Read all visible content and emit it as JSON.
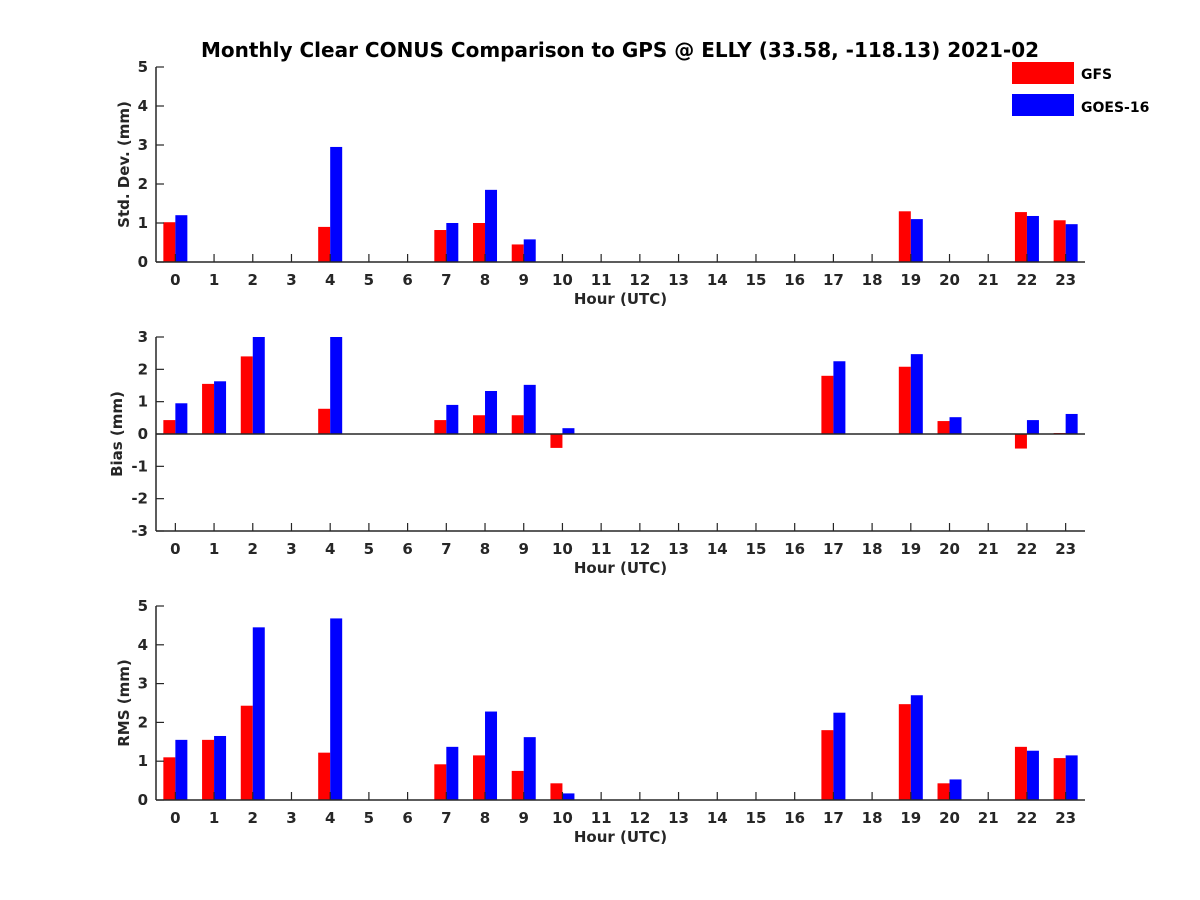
{
  "chart_data": {
    "title": "Monthly Clear CONUS Comparison to GPS @ ELLY (33.58, -118.13) 2021-02",
    "legend": [
      {
        "name": "GFS",
        "color": "#ff0000"
      },
      {
        "name": "GOES-16",
        "color": "#0000ff"
      }
    ],
    "legend_position": "top-right",
    "categories": [
      "0",
      "1",
      "2",
      "3",
      "4",
      "5",
      "6",
      "7",
      "8",
      "9",
      "10",
      "11",
      "12",
      "13",
      "14",
      "15",
      "16",
      "17",
      "18",
      "19",
      "20",
      "21",
      "22",
      "23"
    ],
    "panels": [
      {
        "type": "bar",
        "xlabel": "Hour (UTC)",
        "ylabel": "Std. Dev. (mm)",
        "ylim": [
          0,
          5
        ],
        "yticks": [
          "0",
          "1",
          "2",
          "3",
          "4",
          "5"
        ],
        "series": [
          {
            "name": "GFS",
            "values": [
              1.02,
              null,
              null,
              null,
              0.9,
              null,
              null,
              0.82,
              1.0,
              0.45,
              null,
              null,
              null,
              null,
              null,
              null,
              null,
              null,
              null,
              1.3,
              null,
              null,
              1.28,
              1.07
            ]
          },
          {
            "name": "GOES-16",
            "values": [
              1.2,
              null,
              null,
              null,
              2.95,
              null,
              null,
              1.0,
              1.85,
              0.58,
              null,
              null,
              null,
              null,
              null,
              null,
              null,
              null,
              null,
              1.1,
              null,
              null,
              1.18,
              0.97
            ]
          }
        ]
      },
      {
        "type": "bar",
        "xlabel": "Hour (UTC)",
        "ylabel": "Bias (mm)",
        "ylim": [
          -3,
          3
        ],
        "yticks": [
          "-3",
          "-2",
          "-1",
          "0",
          "1",
          "2",
          "3"
        ],
        "series": [
          {
            "name": "GFS",
            "values": [
              0.43,
              1.55,
              2.4,
              null,
              0.78,
              null,
              null,
              0.43,
              0.58,
              0.58,
              -0.43,
              null,
              null,
              null,
              null,
              null,
              null,
              1.8,
              null,
              2.08,
              0.4,
              null,
              -0.45,
              0.03
            ]
          },
          {
            "name": "GOES-16",
            "values": [
              0.95,
              1.63,
              3.0,
              null,
              3.0,
              null,
              null,
              0.9,
              1.33,
              1.52,
              0.18,
              null,
              null,
              null,
              null,
              null,
              null,
              2.25,
              null,
              2.47,
              0.52,
              null,
              0.43,
              0.62
            ]
          }
        ]
      },
      {
        "type": "bar",
        "xlabel": "Hour (UTC)",
        "ylabel": "RMS (mm)",
        "ylim": [
          0,
          5
        ],
        "yticks": [
          "0",
          "1",
          "2",
          "3",
          "4",
          "5"
        ],
        "series": [
          {
            "name": "GFS",
            "values": [
              1.1,
              1.55,
              2.43,
              null,
              1.22,
              null,
              null,
              0.92,
              1.15,
              0.75,
              0.43,
              null,
              null,
              null,
              null,
              null,
              null,
              1.8,
              null,
              2.47,
              0.43,
              null,
              1.37,
              1.08
            ]
          },
          {
            "name": "GOES-16",
            "values": [
              1.55,
              1.65,
              4.45,
              null,
              4.68,
              null,
              null,
              1.37,
              2.28,
              1.62,
              0.17,
              null,
              null,
              null,
              null,
              null,
              null,
              2.25,
              null,
              2.7,
              0.53,
              null,
              1.27,
              1.15
            ]
          }
        ]
      }
    ]
  }
}
